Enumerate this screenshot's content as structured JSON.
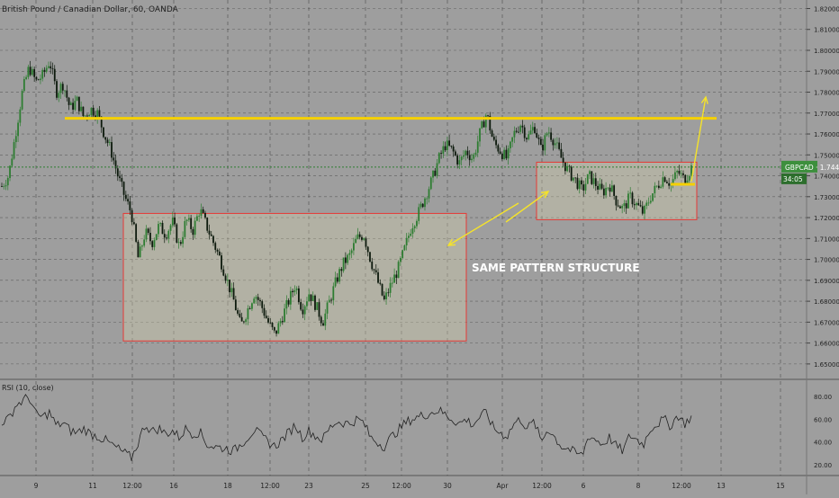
{
  "header": {
    "symbol_title": "British Pound / Canadian Dollar, 60, OANDA"
  },
  "price_tag": {
    "label": "GBPCAD · 1.74415",
    "countdown": "34:05"
  },
  "annotation": {
    "text": "SAME PATTERN STRUCTURE"
  },
  "rsi": {
    "title": "RSI (10, close)",
    "ticks": [
      "80.00",
      "60.00",
      "40.00",
      "20.00"
    ]
  },
  "colors": {
    "background": "#9e9e9e",
    "grid": "#2a2a2a",
    "candle_up": "#2e7d32",
    "candle_down": "#0d1a0d",
    "resistance": "#f5d000",
    "arrow": "#f5e32a",
    "box_border": "#e53935",
    "box_fill": "#d8d4b0",
    "price_tag": "#3d8f3d",
    "text_light": "#ffffff",
    "text_dark": "#222222"
  },
  "chart_data": {
    "type": "candlestick",
    "title": "British Pound / Canadian Dollar, 60, OANDA",
    "y_axis": {
      "ticks": [
        "1.82000",
        "1.81000",
        "1.80000",
        "1.79000",
        "1.78000",
        "1.77000",
        "1.76000",
        "1.75000",
        "1.74000",
        "1.73000",
        "1.72000",
        "1.71000",
        "1.70000",
        "1.69000",
        "1.68000",
        "1.67000",
        "1.66000",
        "1.65000"
      ],
      "range": [
        1.6435,
        1.8215
      ]
    },
    "x_axis": {
      "ticks": [
        "9",
        "11",
        "12:00",
        "16",
        "18",
        "12:00",
        "23",
        "25",
        "12:00",
        "30",
        "Apr",
        "12:00",
        "6",
        "8",
        "12:00",
        "13",
        "15"
      ]
    },
    "last_price": 1.74415,
    "price_path": [
      1.735,
      1.74,
      1.76,
      1.78,
      1.792,
      1.785,
      1.788,
      1.795,
      1.78,
      1.784,
      1.772,
      1.776,
      1.768,
      1.772,
      1.77,
      1.76,
      1.752,
      1.74,
      1.73,
      1.722,
      1.7,
      1.713,
      1.708,
      1.716,
      1.712,
      1.718,
      1.706,
      1.719,
      1.714,
      1.724,
      1.716,
      1.708,
      1.7,
      1.69,
      1.68,
      1.668,
      1.676,
      1.684,
      1.678,
      1.67,
      1.664,
      1.672,
      1.68,
      1.688,
      1.676,
      1.684,
      1.678,
      1.67,
      1.68,
      1.69,
      1.698,
      1.702,
      1.71,
      1.712,
      1.7,
      1.69,
      1.68,
      1.688,
      1.695,
      1.705,
      1.716,
      1.722,
      1.73,
      1.738,
      1.748,
      1.755,
      1.752,
      1.746,
      1.752,
      1.748,
      1.76,
      1.77,
      1.756,
      1.752,
      1.748,
      1.76,
      1.765,
      1.758,
      1.764,
      1.752,
      1.762,
      1.756,
      1.748,
      1.742,
      1.738,
      1.733,
      1.74,
      1.736,
      1.732,
      1.736,
      1.728,
      1.724,
      1.73,
      1.726,
      1.722,
      1.73,
      1.735,
      1.74,
      1.736,
      1.742,
      1.738,
      1.744
    ],
    "resistance_level": 1.7675,
    "boxes": [
      {
        "price_high": 1.722,
        "price_low": 1.661
      },
      {
        "price_high": 1.7465,
        "price_low": 1.719
      }
    ],
    "rsi": {
      "title": "RSI (10, close)",
      "ticks": [
        80,
        60,
        40,
        20
      ],
      "range": [
        12,
        92
      ],
      "values": [
        58,
        60,
        72,
        76,
        80,
        64,
        62,
        66,
        54,
        57,
        50,
        48,
        52,
        47,
        45,
        42,
        38,
        34,
        30,
        26,
        40,
        56,
        49,
        52,
        47,
        50,
        44,
        52,
        47,
        49,
        38,
        36,
        35,
        34,
        32,
        38,
        44,
        51,
        45,
        40,
        36,
        42,
        48,
        55,
        44,
        50,
        45,
        42,
        52,
        58,
        57,
        56,
        60,
        57,
        44,
        40,
        36,
        44,
        50,
        56,
        60,
        62,
        64,
        66,
        68,
        64,
        60,
        56,
        60,
        55,
        62,
        66,
        52,
        48,
        45,
        56,
        60,
        52,
        58,
        40,
        52,
        44,
        36,
        34,
        30,
        28,
        46,
        42,
        38,
        44,
        36,
        32,
        46,
        42,
        38,
        52,
        56,
        60,
        54,
        64,
        56,
        62
      ]
    }
  }
}
